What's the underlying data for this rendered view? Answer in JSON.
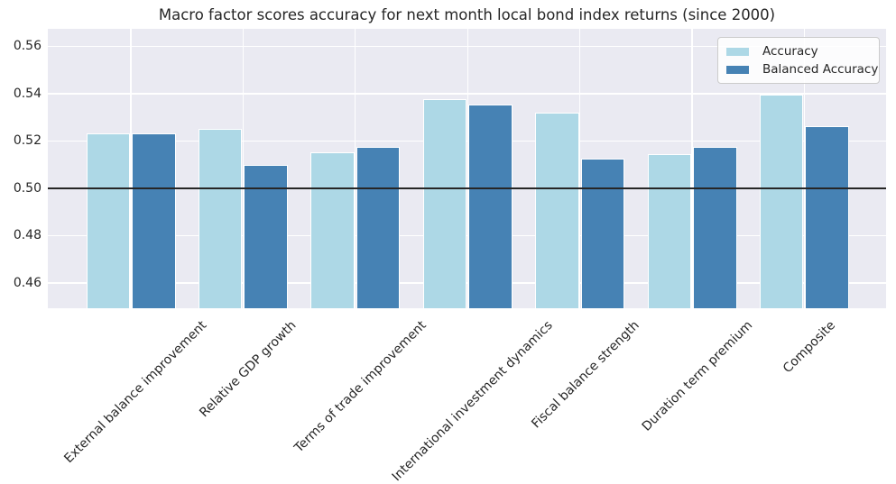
{
  "title": "Macro factor scores accuracy for next month local bond index returns (since 2000)",
  "legend": {
    "items": [
      {
        "label": "Accuracy",
        "color": "#ADD8E6"
      },
      {
        "label": "Balanced Accuracy",
        "color": "#4682B4"
      }
    ]
  },
  "colors": {
    "accuracy_bar": "#ADD8E6",
    "balanced_accuracy_bar": "#4682B4",
    "plot_background": "#EAEAF2",
    "gridline": "#FFFFFF",
    "reference_line": "#262626",
    "text": "#262626"
  },
  "chart_data": {
    "type": "bar",
    "title": "Macro factor scores accuracy for next month local bond index returns (since 2000)",
    "categories": [
      "External balance improvement",
      "Relative GDP growth",
      "Terms of trade improvement",
      "International investment dynamics",
      "Fiscal balance strength",
      "Duration term premium",
      "Composite"
    ],
    "series": [
      {
        "name": "Accuracy",
        "color": "#ADD8E6",
        "values": [
          0.5232,
          0.5253,
          0.5152,
          0.5375,
          0.5321,
          0.5144,
          0.5397
        ]
      },
      {
        "name": "Balanced Accuracy",
        "color": "#4682B4",
        "values": [
          0.5231,
          0.5098,
          0.5174,
          0.5354,
          0.5124,
          0.5175,
          0.5263
        ]
      }
    ],
    "xlabel": "",
    "ylabel": "",
    "ylim": [
      0.4493,
      0.5674
    ],
    "yticks": [
      0.46,
      0.48,
      0.5,
      0.52,
      0.54,
      0.56
    ],
    "reference_line": 0.5,
    "grid": true,
    "legend_position": "upper right"
  }
}
